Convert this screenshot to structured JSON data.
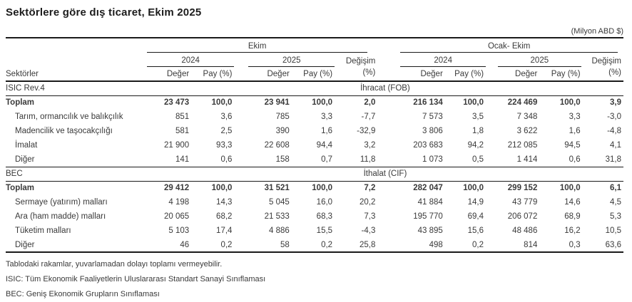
{
  "title": "Sektörlere göre dış ticaret, Ekim 2025",
  "unit_note": "(Milyon ABD $)",
  "table": {
    "sectors_label": "Sektörler",
    "period_month": "Ekim",
    "period_cumulative": "Ocak- Ekim",
    "year_2024": "2024",
    "year_2025": "2025",
    "value_label": "Değer",
    "share_label": "Pay (%)",
    "change_label": "Değişim",
    "change_pct_label": "(%)",
    "sections": [
      {
        "code": "ISIC Rev.4",
        "flow": "İhracat (FOB)",
        "rows": [
          {
            "label": "Toplam",
            "bold": true,
            "indent": false,
            "values": [
              "23 473",
              "100,0",
              "23 941",
              "100,0",
              "2,0",
              "216 134",
              "100,0",
              "224 469",
              "100,0",
              "3,9"
            ]
          },
          {
            "label": "Tarım, ormancılık ve balıkçılık",
            "bold": false,
            "indent": true,
            "values": [
              "851",
              "3,6",
              "785",
              "3,3",
              "-7,7",
              "7 573",
              "3,5",
              "7 348",
              "3,3",
              "-3,0"
            ]
          },
          {
            "label": "Madencilik ve taşocakçılığı",
            "bold": false,
            "indent": true,
            "values": [
              "581",
              "2,5",
              "390",
              "1,6",
              "-32,9",
              "3 806",
              "1,8",
              "3 622",
              "1,6",
              "-4,8"
            ]
          },
          {
            "label": "İmalat",
            "bold": false,
            "indent": true,
            "values": [
              "21 900",
              "93,3",
              "22 608",
              "94,4",
              "3,2",
              "203 683",
              "94,2",
              "212 085",
              "94,5",
              "4,1"
            ]
          },
          {
            "label": "Diğer",
            "bold": false,
            "indent": true,
            "values": [
              "141",
              "0,6",
              "158",
              "0,7",
              "11,8",
              "1 073",
              "0,5",
              "1 414",
              "0,6",
              "31,8"
            ]
          }
        ]
      },
      {
        "code": "BEC",
        "flow": "İthalat (CIF)",
        "rows": [
          {
            "label": "Toplam",
            "bold": true,
            "indent": false,
            "values": [
              "29 412",
              "100,0",
              "31 521",
              "100,0",
              "7,2",
              "282 047",
              "100,0",
              "299 152",
              "100,0",
              "6,1"
            ]
          },
          {
            "label": "Sermaye (yatırım) malları",
            "bold": false,
            "indent": true,
            "values": [
              "4 198",
              "14,3",
              "5 045",
              "16,0",
              "20,2",
              "41 884",
              "14,9",
              "43 779",
              "14,6",
              "4,5"
            ]
          },
          {
            "label": "Ara (ham madde) malları",
            "bold": false,
            "indent": true,
            "values": [
              "20 065",
              "68,2",
              "21 533",
              "68,3",
              "7,3",
              "195 770",
              "69,4",
              "206 072",
              "68,9",
              "5,3"
            ]
          },
          {
            "label": "Tüketim malları",
            "bold": false,
            "indent": true,
            "values": [
              "5 103",
              "17,4",
              "4 886",
              "15,5",
              "-4,3",
              "43 895",
              "15,6",
              "48 486",
              "16,2",
              "10,5"
            ]
          },
          {
            "label": "Diğer",
            "bold": false,
            "indent": true,
            "values": [
              "46",
              "0,2",
              "58",
              "0,2",
              "25,8",
              "498",
              "0,2",
              "814",
              "0,3",
              "63,6"
            ]
          }
        ]
      }
    ]
  },
  "footnotes": [
    "Tablodaki rakamlar, yuvarlamadan dolayı toplamı vermeyebilir.",
    "ISIC: Tüm Ekonomik Faaliyetlerin Uluslararası Standart Sanayi Sınıflaması",
    "BEC: Geniş Ekonomik Grupların Sınıflaması"
  ],
  "colors": {
    "text": "#3a3a3a",
    "rule": "#1a1a1a",
    "background": "#ffffff"
  }
}
